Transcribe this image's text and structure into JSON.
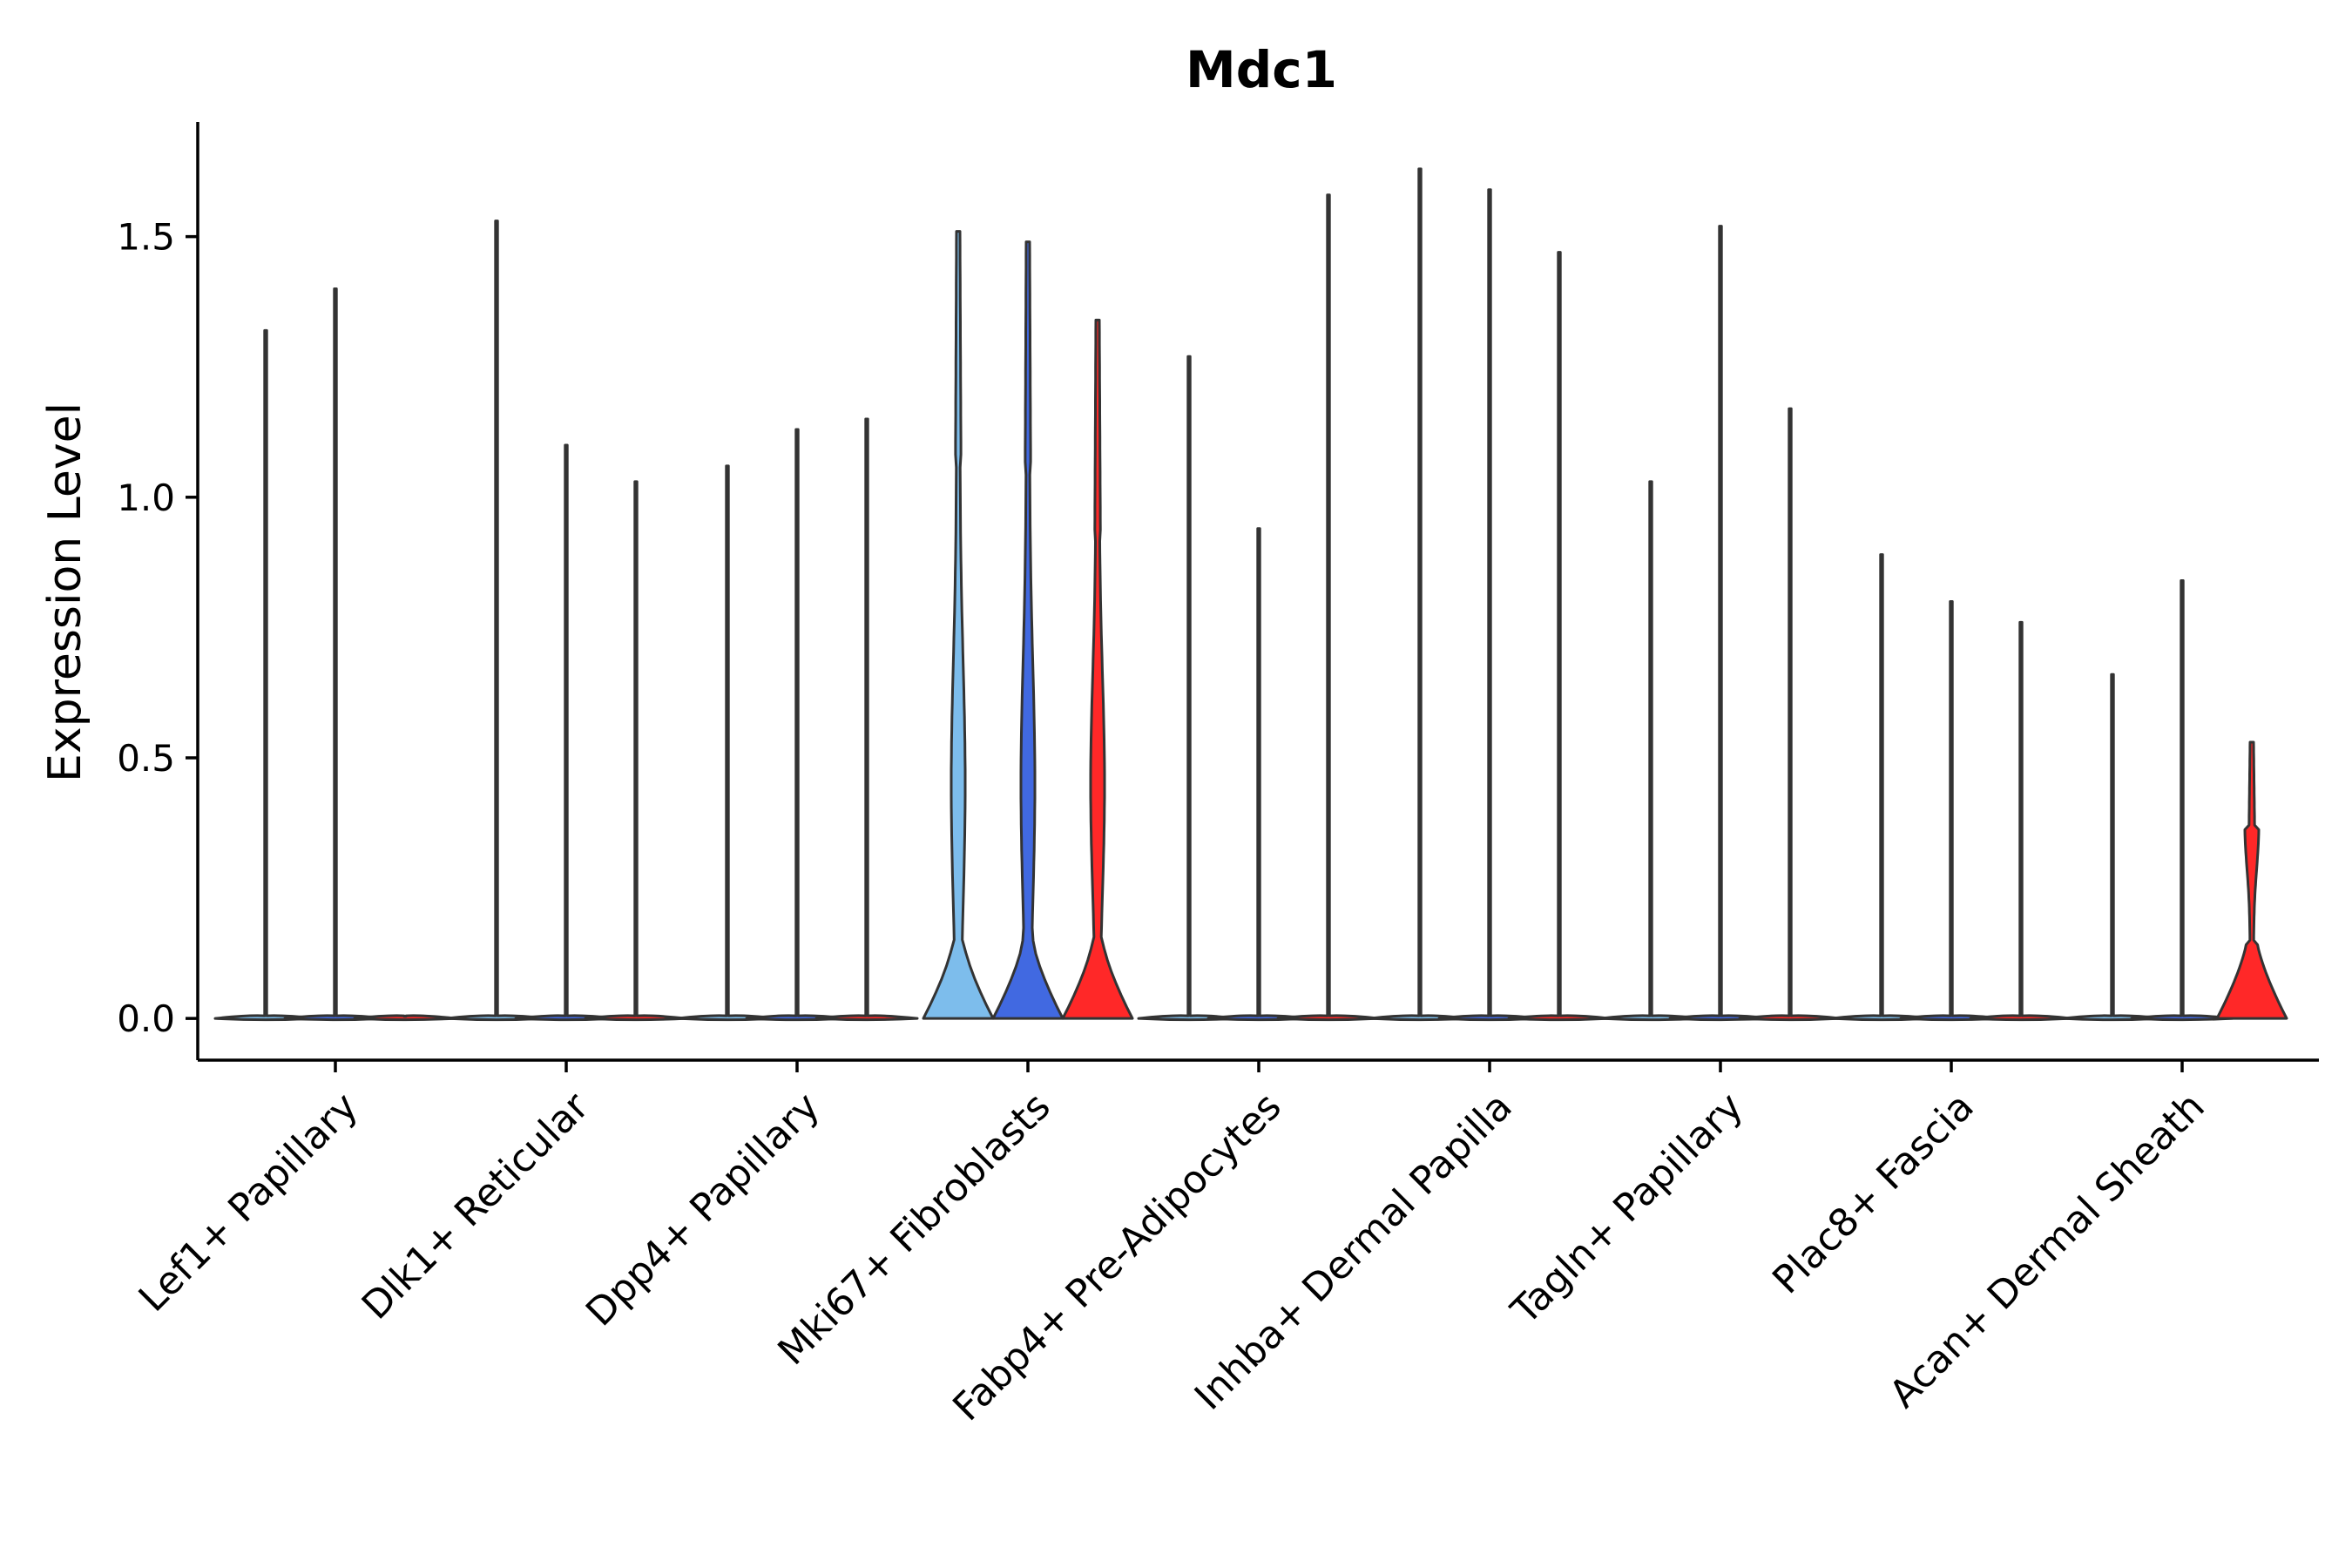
{
  "chart_data": {
    "type": "violin",
    "title": "Mdc1",
    "xlabel": "",
    "ylabel": "Expression Level",
    "ylim": [
      -0.08,
      1.72
    ],
    "yticks": [
      0.0,
      0.5,
      1.0,
      1.5
    ],
    "ytick_labels": [
      "0.0",
      "0.5",
      "1.0",
      "1.5"
    ],
    "categories": [
      "Lef1+ Papillary",
      "Dlk1+ Reticular",
      "Dpp4+ Papillary",
      "Mki67+ Fibroblasts",
      "Fabp4+ Pre-Adipocytes",
      "Inhba+ Dermal Papilla",
      "Tagln+ Papillary",
      "Plac8+ Fascia",
      "Acan+ Dermal Sheath"
    ],
    "groups_per_category": 3,
    "series": [
      {
        "name": "group1",
        "color": "#7DBDEC"
      },
      {
        "name": "group2",
        "color": "#4169E1"
      },
      {
        "name": "group3",
        "color": "#FF2828"
      }
    ],
    "violins": [
      {
        "category": 0,
        "group": 0,
        "max": 1.32,
        "shape": "flat"
      },
      {
        "category": 0,
        "group": 1,
        "max": 1.4,
        "shape": "flat"
      },
      {
        "category": 0,
        "group": 2,
        "max": null,
        "shape": "flat"
      },
      {
        "category": 1,
        "group": 0,
        "max": 1.53,
        "shape": "flat"
      },
      {
        "category": 1,
        "group": 1,
        "max": 1.1,
        "shape": "flat"
      },
      {
        "category": 1,
        "group": 2,
        "max": 1.03,
        "shape": "flat"
      },
      {
        "category": 2,
        "group": 0,
        "max": 1.06,
        "shape": "flat"
      },
      {
        "category": 2,
        "group": 1,
        "max": 1.13,
        "shape": "flat"
      },
      {
        "category": 2,
        "group": 2,
        "max": 1.15,
        "shape": "flat"
      },
      {
        "category": 3,
        "group": 0,
        "max": 1.51,
        "shape": "full"
      },
      {
        "category": 3,
        "group": 1,
        "max": 1.49,
        "shape": "full"
      },
      {
        "category": 3,
        "group": 2,
        "max": 1.34,
        "shape": "full"
      },
      {
        "category": 4,
        "group": 0,
        "max": 1.27,
        "shape": "flat"
      },
      {
        "category": 4,
        "group": 1,
        "max": 0.94,
        "shape": "flat"
      },
      {
        "category": 4,
        "group": 2,
        "max": 1.58,
        "shape": "flat"
      },
      {
        "category": 5,
        "group": 0,
        "max": 1.63,
        "shape": "flat"
      },
      {
        "category": 5,
        "group": 1,
        "max": 1.59,
        "shape": "flat"
      },
      {
        "category": 5,
        "group": 2,
        "max": 1.47,
        "shape": "flat"
      },
      {
        "category": 6,
        "group": 0,
        "max": 1.03,
        "shape": "flat"
      },
      {
        "category": 6,
        "group": 1,
        "max": 1.52,
        "shape": "flat"
      },
      {
        "category": 6,
        "group": 2,
        "max": 1.17,
        "shape": "flat"
      },
      {
        "category": 7,
        "group": 0,
        "max": 0.89,
        "shape": "flat"
      },
      {
        "category": 7,
        "group": 1,
        "max": 0.8,
        "shape": "flat"
      },
      {
        "category": 7,
        "group": 2,
        "max": 0.76,
        "shape": "flat"
      },
      {
        "category": 8,
        "group": 0,
        "max": 0.66,
        "shape": "flat"
      },
      {
        "category": 8,
        "group": 1,
        "max": 0.84,
        "shape": "flat"
      },
      {
        "category": 8,
        "group": 2,
        "max": 0.53,
        "shape": "full"
      }
    ],
    "grid": false,
    "legend": "none"
  }
}
